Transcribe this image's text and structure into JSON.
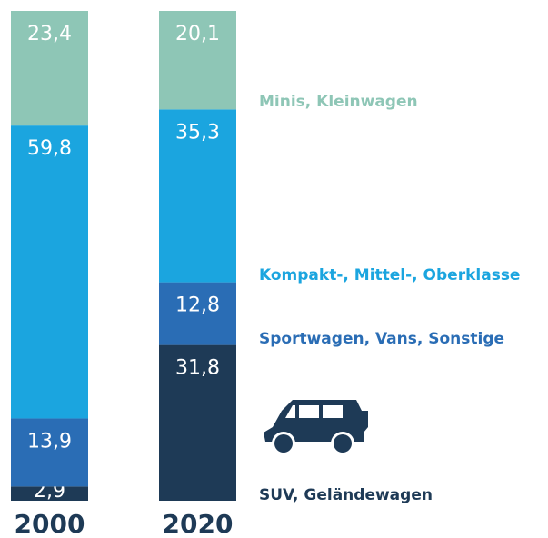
{
  "chart_data": {
    "type": "bar",
    "stacked": true,
    "categories": [
      "2000",
      "2020"
    ],
    "series": [
      {
        "name": "SUV, Geländewagen",
        "color": "#1e3a56",
        "values": [
          2.9,
          31.8
        ],
        "value_labels": [
          "2,9",
          "31,8"
        ]
      },
      {
        "name": "Sportwagen, Vans, Sonstige",
        "color": "#2a6db5",
        "values": [
          13.9,
          12.8
        ],
        "value_labels": [
          "13,9",
          "12,8"
        ]
      },
      {
        "name": "Kompakt-, Mittel-, Oberklasse",
        "color": "#1ba5df",
        "values": [
          59.8,
          35.3
        ],
        "value_labels": [
          "59,8",
          "35,3"
        ]
      },
      {
        "name": "Minis, Kleinwagen",
        "color": "#8ec6b6",
        "values": [
          23.4,
          20.1
        ],
        "value_labels": [
          "23,4",
          "20,1"
        ]
      }
    ]
  }
}
